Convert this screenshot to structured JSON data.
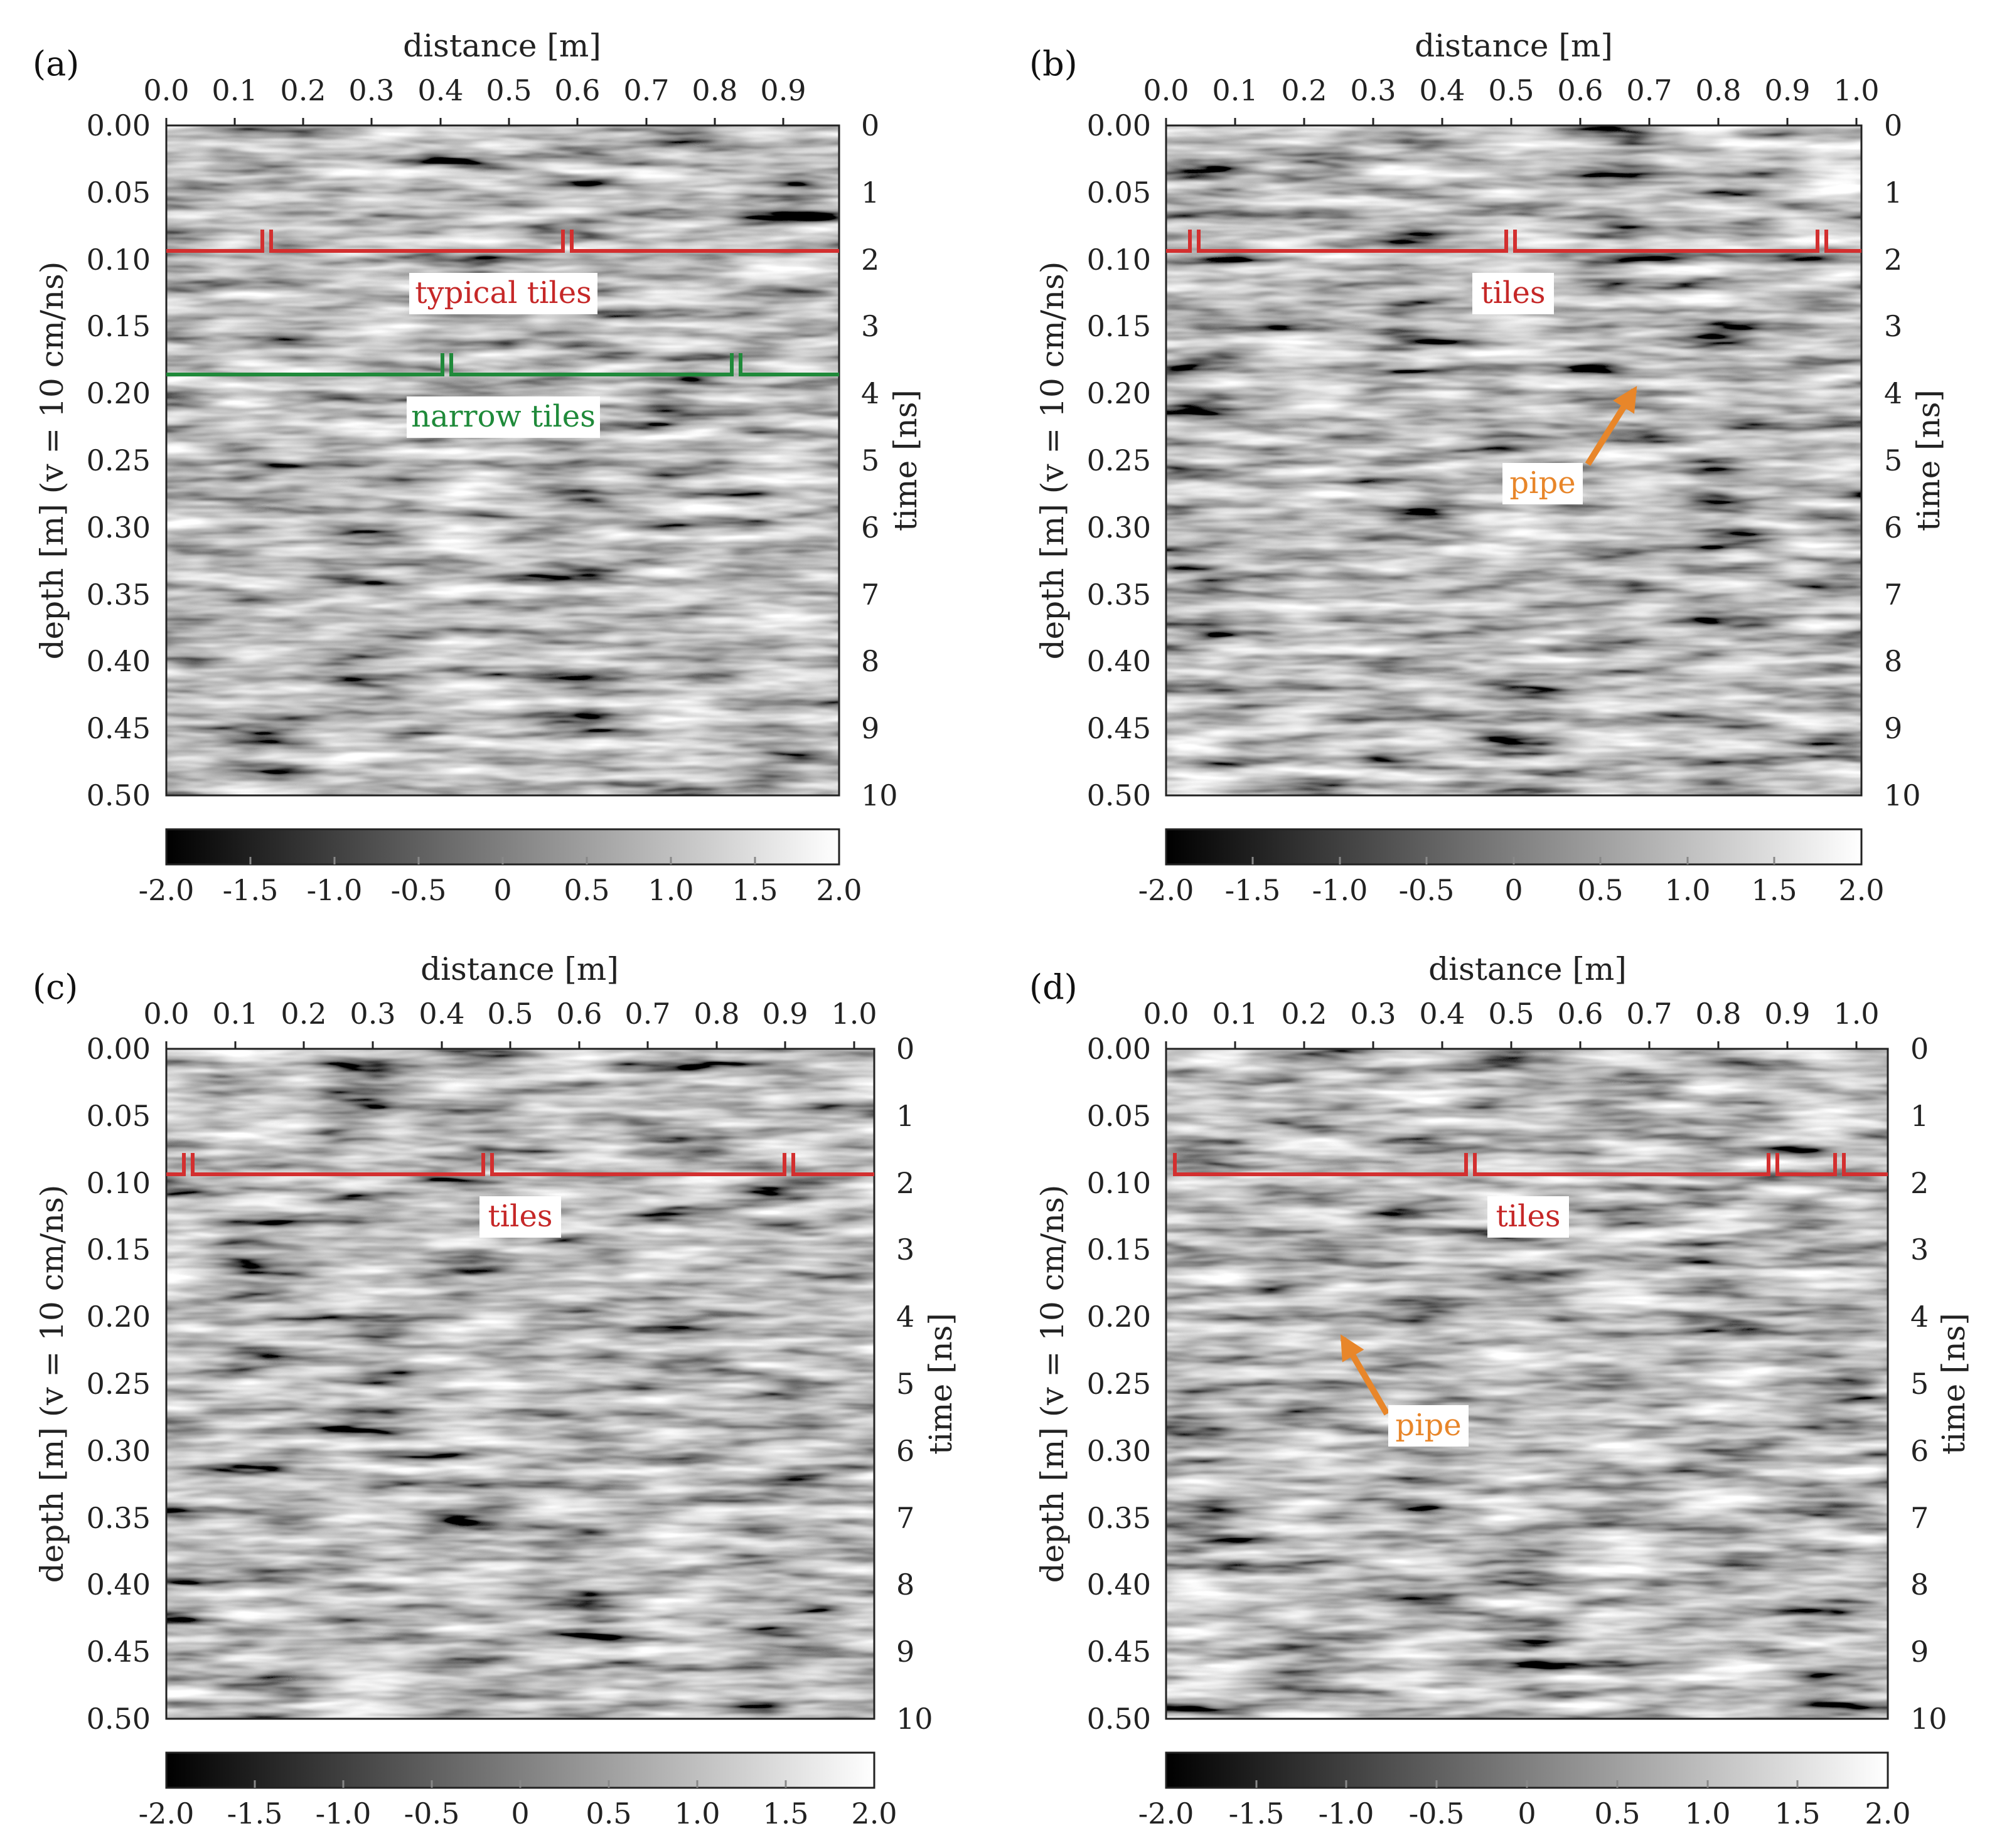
{
  "figure": {
    "panels": [
      {
        "id": "a",
        "letter": "(a)",
        "x_label": "distance [m]",
        "y_label_left": "depth [m]  (v = 10 cm/ns)",
        "y_label_right": "time [ns]",
        "x_ticks": [
          "0.0",
          "0.1",
          "0.2",
          "0.3",
          "0.4",
          "0.5",
          "0.6",
          "0.7",
          "0.8",
          "0.9"
        ],
        "depth_ticks": [
          "0.00",
          "0.05",
          "0.10",
          "0.15",
          "0.20",
          "0.25",
          "0.30",
          "0.35",
          "0.40",
          "0.45",
          "0.50"
        ],
        "time_ticks": [
          "0",
          "1",
          "2",
          "3",
          "4",
          "5",
          "6",
          "7",
          "8",
          "9",
          "10"
        ],
        "colorbar_ticks": [
          "-2.0",
          "-1.5",
          "-1.0",
          "-0.5",
          "0",
          "0.5",
          "1.0",
          "1.5",
          "2.0"
        ],
        "annotations": [
          {
            "type": "tile-line",
            "label": "typical tiles",
            "color": "#d32f2f",
            "depth": 0.09,
            "breaks_x": [
              0.15,
              0.58
            ],
            "label_x": 0.5,
            "label_depth": 0.125
          },
          {
            "type": "tile-line",
            "label": "narrow tiles",
            "color": "#1f8a3a",
            "depth": 0.183,
            "breaks_x": [
              0.41,
              0.83
            ],
            "label_x": 0.5,
            "label_depth": 0.216
          }
        ]
      },
      {
        "id": "b",
        "letter": "(b)",
        "x_label": "distance [m]",
        "y_label_left": "depth [m]  (v = 10 cm/ns)",
        "y_label_right": "time [ns]",
        "x_ticks": [
          "0.0",
          "0.1",
          "0.2",
          "0.3",
          "0.4",
          "0.5",
          "0.6",
          "0.7",
          "0.8",
          "0.9",
          "1.0"
        ],
        "depth_ticks": [
          "0.00",
          "0.05",
          "0.10",
          "0.15",
          "0.20",
          "0.25",
          "0.30",
          "0.35",
          "0.40",
          "0.45",
          "0.50"
        ],
        "time_ticks": [
          "0",
          "1",
          "2",
          "3",
          "4",
          "5",
          "6",
          "7",
          "8",
          "9",
          "10"
        ],
        "colorbar_ticks": [
          "-2.0",
          "-1.5",
          "-1.0",
          "-0.5",
          "0",
          "0.5",
          "1.0",
          "1.5",
          "2.0"
        ],
        "annotations": [
          {
            "type": "tile-line",
            "label": "tiles",
            "color": "#d32f2f",
            "depth": 0.09,
            "breaks_x": [
              0.04,
              0.5,
              0.95
            ],
            "label_x": 0.5,
            "label_depth": 0.125
          },
          {
            "type": "arrow",
            "label": "pipe",
            "color": "#e8862a",
            "from_x": 0.62,
            "from_depth": 0.255,
            "to_x": 0.67,
            "to_depth": 0.19,
            "label_x": 0.55,
            "label_depth": 0.268
          }
        ]
      },
      {
        "id": "c",
        "letter": "(c)",
        "x_label": "distance [m]",
        "y_label_left": "depth [m]  (v = 10 cm/ns)",
        "y_label_right": "time [ns]",
        "x_ticks": [
          "0.0",
          "0.1",
          "0.2",
          "0.3",
          "0.4",
          "0.5",
          "0.6",
          "0.7",
          "0.8",
          "0.9",
          "1.0"
        ],
        "depth_ticks": [
          "0.00",
          "0.05",
          "0.10",
          "0.15",
          "0.20",
          "0.25",
          "0.30",
          "0.35",
          "0.40",
          "0.45",
          "0.50"
        ],
        "time_ticks": [
          "0",
          "1",
          "2",
          "3",
          "4",
          "5",
          "6",
          "7",
          "8",
          "9",
          "10"
        ],
        "colorbar_ticks": [
          "-2.0",
          "-1.5",
          "-1.0",
          "-0.5",
          "0",
          "0.5",
          "1.0",
          "1.5",
          "2.0"
        ],
        "annotations": [
          {
            "type": "tile-line",
            "label": "tiles",
            "color": "#d32f2f",
            "depth": 0.09,
            "breaks_x": [
              0.03,
              0.46,
              0.9
            ],
            "label_x": 0.51,
            "label_depth": 0.125
          }
        ]
      },
      {
        "id": "d",
        "letter": "(d)",
        "x_label": "distance [m]",
        "y_label_left": "depth [m]  (v = 10 cm/ns)",
        "y_label_right": "time [ns]",
        "x_ticks": [
          "0.0",
          "0.1",
          "0.2",
          "0.3",
          "0.4",
          "0.5",
          "0.6",
          "0.7",
          "0.8",
          "0.9",
          "1.0"
        ],
        "depth_ticks": [
          "0.00",
          "0.05",
          "0.10",
          "0.15",
          "0.20",
          "0.25",
          "0.30",
          "0.35",
          "0.40",
          "0.45",
          "0.50"
        ],
        "time_ticks": [
          "0",
          "1",
          "2",
          "3",
          "4",
          "5",
          "6",
          "7",
          "8",
          "9",
          "10"
        ],
        "colorbar_ticks": [
          "-2.0",
          "-1.5",
          "-1.0",
          "-0.5",
          "0",
          "0.5",
          "1.0",
          "1.5",
          "2.0"
        ],
        "annotations": [
          {
            "type": "tile-line",
            "label": "tiles",
            "color": "#d32f2f",
            "depth": 0.09,
            "breaks_x": [
              0.44,
              0.88,
              0.97
            ],
            "label_x": 0.52,
            "label_depth": 0.125
          },
          {
            "type": "arrow",
            "label": "pipe",
            "color": "#e8862a",
            "from_x": 0.32,
            "from_depth": 0.273,
            "to_x": 0.25,
            "to_depth": 0.215,
            "label_x": 0.38,
            "label_depth": 0.288
          }
        ]
      }
    ]
  },
  "chart_data": [
    {
      "type": "heatmap",
      "panel": "a",
      "xlabel": "distance [m]",
      "ylabel": "depth [m]  (v = 10 cm/ns)",
      "ylabel_right": "time [ns]",
      "xlim": [
        0.0,
        0.98
      ],
      "ylim": [
        0.0,
        0.5
      ],
      "time_range_ns": [
        0,
        10
      ],
      "colorbar_range": [
        -2.0,
        2.0
      ],
      "colormap": "grayscale",
      "annotations": [
        "typical tiles",
        "narrow tiles"
      ]
    },
    {
      "type": "heatmap",
      "panel": "b",
      "xlabel": "distance [m]",
      "ylabel": "depth [m]  (v = 10 cm/ns)",
      "ylabel_right": "time [ns]",
      "xlim": [
        0.0,
        1.01
      ],
      "ylim": [
        0.0,
        0.5
      ],
      "time_range_ns": [
        0,
        10
      ],
      "colorbar_range": [
        -2.0,
        2.0
      ],
      "colormap": "grayscale",
      "annotations": [
        "tiles",
        "pipe"
      ]
    },
    {
      "type": "heatmap",
      "panel": "c",
      "xlabel": "distance [m]",
      "ylabel": "depth [m]  (v = 10 cm/ns)",
      "ylabel_right": "time [ns]",
      "xlim": [
        0.0,
        1.03
      ],
      "ylim": [
        0.0,
        0.5
      ],
      "time_range_ns": [
        0,
        10
      ],
      "colorbar_range": [
        -2.0,
        2.0
      ],
      "colormap": "grayscale",
      "annotations": [
        "tiles"
      ]
    },
    {
      "type": "heatmap",
      "panel": "d",
      "xlabel": "distance [m]",
      "ylabel": "depth [m]  (v = 10 cm/ns)",
      "ylabel_right": "time [ns]",
      "xlim": [
        0.0,
        1.05
      ],
      "ylim": [
        0.0,
        0.5
      ],
      "time_range_ns": [
        0,
        10
      ],
      "colorbar_range": [
        -2.0,
        2.0
      ],
      "colormap": "grayscale",
      "annotations": [
        "tiles",
        "pipe"
      ]
    }
  ]
}
